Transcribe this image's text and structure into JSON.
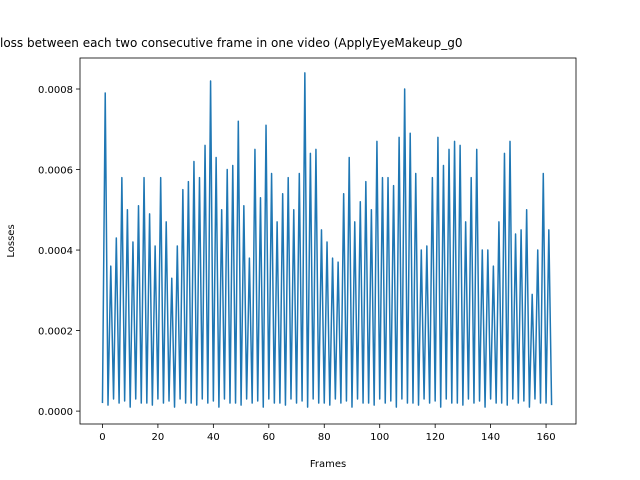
{
  "chart_data": {
    "type": "line",
    "title": "loss between each two consecutive frame in one video (ApplyEyeMakeup_g0",
    "x_label": "Frames",
    "y_label": "Losses",
    "color": "#1f77b4",
    "x": [
      0,
      1,
      2,
      3,
      4,
      5,
      6,
      7,
      8,
      9,
      10,
      11,
      12,
      13,
      14,
      15,
      16,
      17,
      18,
      19,
      20,
      21,
      22,
      23,
      24,
      25,
      26,
      27,
      28,
      29,
      30,
      31,
      32,
      33,
      34,
      35,
      36,
      37,
      38,
      39,
      40,
      41,
      42,
      43,
      44,
      45,
      46,
      47,
      48,
      49,
      50,
      51,
      52,
      53,
      54,
      55,
      56,
      57,
      58,
      59,
      60,
      61,
      62,
      63,
      64,
      65,
      66,
      67,
      68,
      69,
      70,
      71,
      72,
      73,
      74,
      75,
      76,
      77,
      78,
      79,
      80,
      81,
      82,
      83,
      84,
      85,
      86,
      87,
      88,
      89,
      90,
      91,
      92,
      93,
      94,
      95,
      96,
      97,
      98,
      99,
      100,
      101,
      102,
      103,
      104,
      105,
      106,
      107,
      108,
      109,
      110,
      111,
      112,
      113,
      114,
      115,
      116,
      117,
      118,
      119,
      120,
      121,
      122,
      123,
      124,
      125,
      126,
      127,
      128,
      129,
      130,
      131,
      132,
      133,
      134,
      135,
      136,
      137,
      138,
      139,
      140,
      141,
      142,
      143,
      144,
      145,
      146,
      147,
      148,
      149,
      150,
      151,
      152,
      153,
      154,
      155,
      156,
      157,
      158,
      159,
      160,
      161,
      162
    ],
    "values": [
      2e-05,
      0.00079,
      1.5e-05,
      0.00036,
      3e-05,
      0.00043,
      2e-05,
      0.00058,
      2.5e-05,
      0.0005,
      1e-05,
      0.00042,
      3e-05,
      0.00051,
      2e-05,
      0.00058,
      2e-05,
      0.00049,
      1.5e-05,
      0.00041,
      3e-05,
      0.00058,
      2e-05,
      0.00047,
      2.5e-05,
      0.00033,
      1e-05,
      0.00041,
      3e-05,
      0.00055,
      2e-05,
      0.00057,
      2e-05,
      0.00062,
      1.5e-05,
      0.00058,
      3e-05,
      0.00066,
      2e-05,
      0.00082,
      2.5e-05,
      0.00063,
      1e-05,
      0.0005,
      3e-05,
      0.0006,
      2e-05,
      0.00061,
      2e-05,
      0.00072,
      1.5e-05,
      0.00051,
      3e-05,
      0.00038,
      2e-05,
      0.00065,
      2.5e-05,
      0.00053,
      1e-05,
      0.00071,
      3e-05,
      0.00059,
      2e-05,
      0.00047,
      2e-05,
      0.00054,
      1.5e-05,
      0.00058,
      3e-05,
      0.0005,
      2e-05,
      0.00059,
      2.5e-05,
      0.00084,
      1e-05,
      0.00064,
      3e-05,
      0.00065,
      2e-05,
      0.00045,
      2e-05,
      0.00042,
      1.5e-05,
      0.00038,
      3e-05,
      0.00037,
      2e-05,
      0.00054,
      2.5e-05,
      0.00063,
      1e-05,
      0.00047,
      3e-05,
      0.00052,
      2e-05,
      0.00057,
      2e-05,
      0.0005,
      1.5e-05,
      0.00067,
      3e-05,
      0.00058,
      2e-05,
      0.00058,
      2.5e-05,
      0.00056,
      1e-05,
      0.00068,
      3e-05,
      0.0008,
      2e-05,
      0.00069,
      2e-05,
      0.00059,
      1.5e-05,
      0.0004,
      3e-05,
      0.00041,
      2e-05,
      0.00058,
      2.5e-05,
      0.00068,
      1e-05,
      0.00061,
      3e-05,
      0.00065,
      2e-05,
      0.00067,
      2e-05,
      0.00066,
      1.5e-05,
      0.00047,
      3e-05,
      0.00058,
      2e-05,
      0.00065,
      2.5e-05,
      0.0004,
      1e-05,
      0.0004,
      3e-05,
      0.00036,
      2e-05,
      0.00047,
      2e-05,
      0.00064,
      1.5e-05,
      0.00067,
      3e-05,
      0.00044,
      2e-05,
      0.00045,
      2.5e-05,
      0.0005,
      1e-05,
      0.00029,
      3e-05,
      0.0004,
      2e-05,
      0.00059,
      2e-05,
      0.00045,
      1.5e-05
    ],
    "xlim": [
      -8.1,
      170.8
    ],
    "xticks": [
      0,
      20,
      40,
      60,
      80,
      100,
      120,
      140,
      160
    ],
    "ylim": [
      -3.2e-05,
      0.000877
    ],
    "yticks": [
      {
        "value": 0,
        "label": "0.0000"
      },
      {
        "value": 0.0002,
        "label": "0.0002"
      },
      {
        "value": 0.0004,
        "label": "0.0004"
      },
      {
        "value": 0.0006,
        "label": "0.0006"
      },
      {
        "value": 0.0008,
        "label": "0.0008"
      }
    ]
  }
}
